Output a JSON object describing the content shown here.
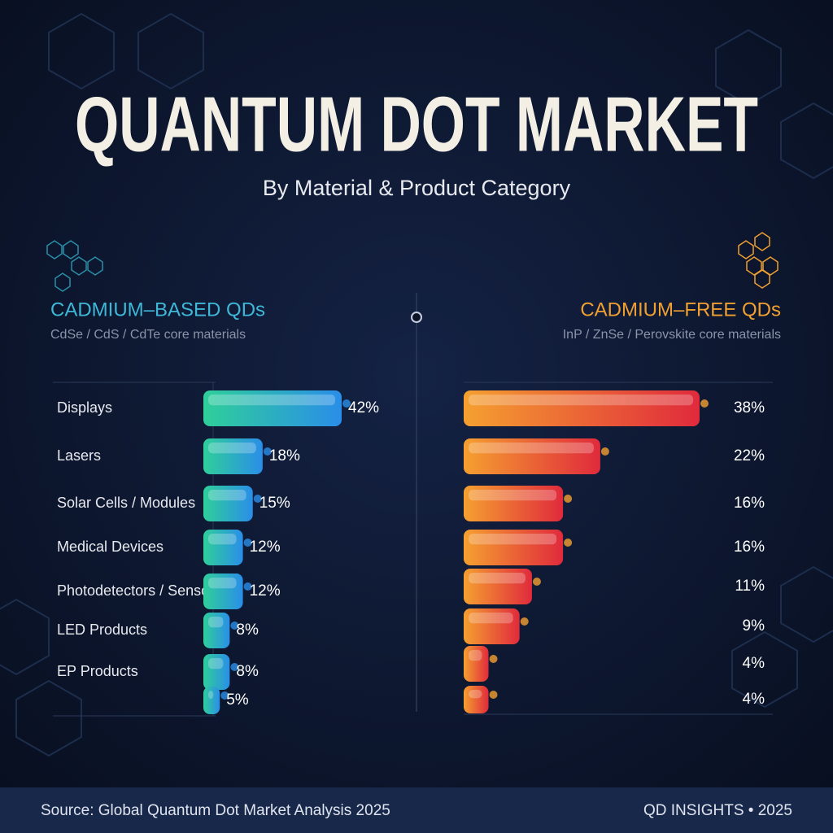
{
  "header": {
    "title": "QUANTUM DOT MARKET",
    "subtitle": "By Material & Product Category"
  },
  "chart_data": [
    {
      "type": "bar",
      "orientation": "horizontal",
      "title": "CADMIUM–BASED QDs",
      "subtitle": "CdSe / CdS / CdTe core materials",
      "categories": [
        "Displays",
        "Lasers",
        "Solar Cells / Modules",
        "Medical Devices",
        "Photodetectors / Sensors",
        "LED Products",
        "EP Products",
        null
      ],
      "values": [
        42,
        18,
        15,
        12,
        12,
        8,
        8,
        5
      ],
      "value_labels": [
        "42%",
        "18%",
        "15%",
        "12%",
        "12%",
        "8%",
        "8%",
        "5%"
      ],
      "color": [
        "#2fcf9a",
        "#2a8ee8"
      ],
      "title_color": "#3fb8d8"
    },
    {
      "type": "bar",
      "orientation": "horizontal",
      "title": "CADMIUM–FREE QDs",
      "subtitle": "InP / ZnSe / Perovskite core materials",
      "values": [
        38,
        22,
        16,
        16,
        11,
        9,
        4,
        4
      ],
      "value_labels": [
        "38%",
        "22%",
        "16%",
        "16%",
        "11%",
        "9%",
        "4%",
        "4%"
      ],
      "color": [
        "#f5a030",
        "#e02a3c"
      ],
      "title_color": "#f0a030"
    }
  ],
  "footer": {
    "source": "Source: Global Quantum Dot Market Analysis 2025",
    "brand": "QD INSIGHTS • 2025"
  }
}
